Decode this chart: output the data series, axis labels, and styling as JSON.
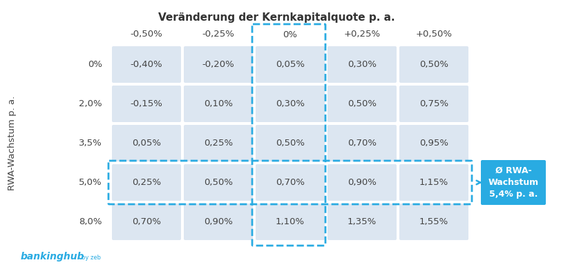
{
  "title": "Veränderung der Kernkapitalquote p. a.",
  "ylabel": "RWA-Wachstum p. a.",
  "col_headers": [
    "-0,50%",
    "-0,25%",
    "0%",
    "+0,25%",
    "+0,50%"
  ],
  "row_headers": [
    "0%",
    "2,0%",
    "3,5%",
    "5,0%",
    "8,0%"
  ],
  "table_values": [
    [
      "-0,40%",
      "-0,20%",
      "0,05%",
      "0,30%",
      "0,50%"
    ],
    [
      "-0,15%",
      "0,10%",
      "0,30%",
      "0,50%",
      "0,75%"
    ],
    [
      "0,05%",
      "0,25%",
      "0,50%",
      "0,70%",
      "0,95%"
    ],
    [
      "0,25%",
      "0,50%",
      "0,70%",
      "0,90%",
      "1,15%"
    ],
    [
      "0,70%",
      "0,90%",
      "1,10%",
      "1,35%",
      "1,55%"
    ]
  ],
  "cell_color": "#dce6f1",
  "highlight_col": 2,
  "highlight_row": 3,
  "dash_color": "#29abe2",
  "callout_text": "Ø RWA-\nWachstum\n5,4% p. a.",
  "callout_bg": "#29abe2",
  "callout_text_color": "#ffffff",
  "bankinghub_color": "#29abe2",
  "background_color": "#ffffff",
  "header_fontsize": 9.5,
  "cell_fontsize": 9.5,
  "title_fontsize": 11,
  "ylabel_fontsize": 9.5
}
